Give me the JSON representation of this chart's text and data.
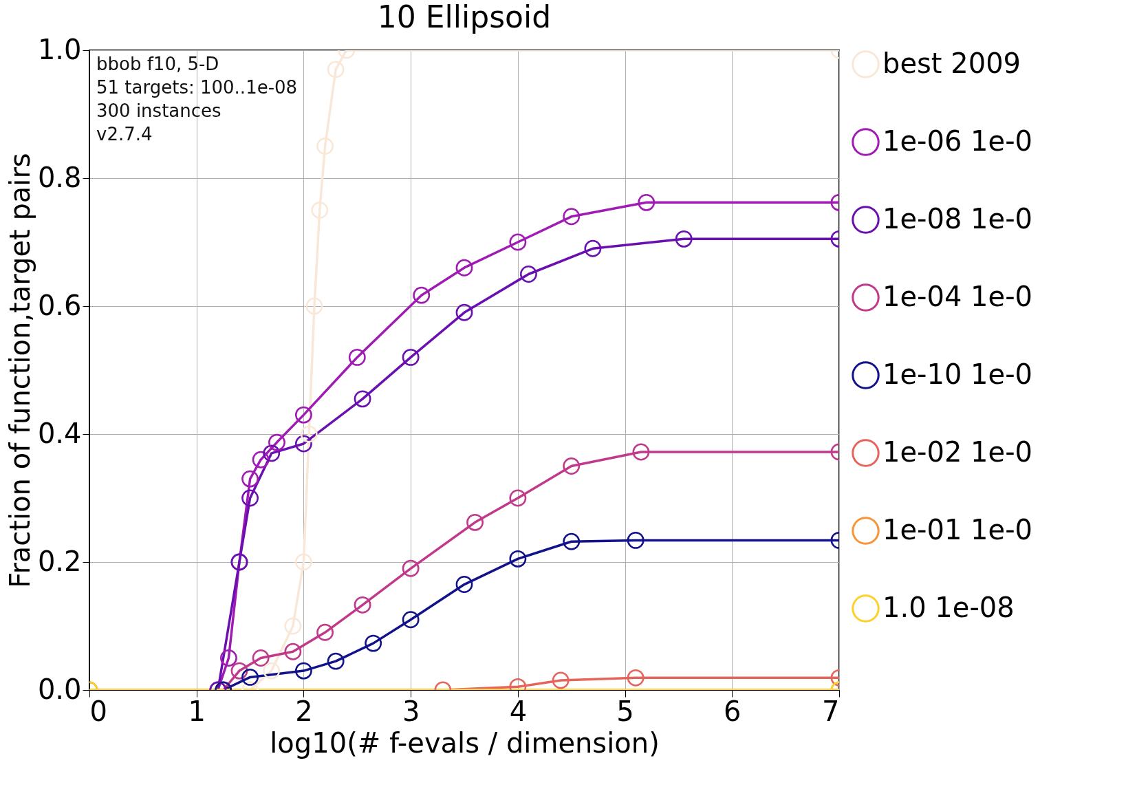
{
  "chart_data": {
    "type": "line",
    "title": "10 Ellipsoid",
    "xlabel": "log10(# f-evals / dimension)",
    "ylabel": "Fraction of function,target pairs",
    "annotations": [
      "bbob f10, 5-D",
      "51 targets: 100..1e-08",
      "300 instances",
      "v2.7.4"
    ],
    "xlim": [
      0,
      7
    ],
    "xticks": [
      0,
      1,
      2,
      3,
      4,
      5,
      6,
      7
    ],
    "ylim": [
      0,
      1
    ],
    "yticks": [
      {
        "value": 0,
        "label": "0.0"
      },
      {
        "value": 0.2,
        "label": "0.2"
      },
      {
        "value": 0.4,
        "label": "0.4"
      },
      {
        "value": 0.6,
        "label": "0.6"
      },
      {
        "value": 0.8,
        "label": "0.8"
      },
      {
        "value": 1,
        "label": "1.0"
      }
    ],
    "grid": true,
    "legend": "right",
    "marker": "circle",
    "line_style": "solid",
    "series": [
      {
        "name": "best 2009",
        "color": "#f9e8d8",
        "x": [
          1.5,
          1.7,
          1.9,
          2.0,
          2.05,
          2.1,
          2.15,
          2.2,
          2.3,
          2.4,
          7
        ],
        "values": [
          0,
          0.03,
          0.1,
          0.2,
          0.4,
          0.6,
          0.75,
          0.85,
          0.97,
          1.0,
          1.0
        ]
      },
      {
        "name": "1e-06 1e-0",
        "color": "#a01ab4",
        "x": [
          1.2,
          1.3,
          1.4,
          1.5,
          1.6,
          1.75,
          2.0,
          2.5,
          3.1,
          3.5,
          4,
          4.5,
          5.2,
          7
        ],
        "values": [
          0,
          0.05,
          0.2,
          0.33,
          0.36,
          0.387,
          0.43,
          0.52,
          0.617,
          0.66,
          0.7,
          0.74,
          0.762,
          0.762
        ]
      },
      {
        "name": "1e-08 1e-0",
        "color": "#6a10b0",
        "x": [
          1.2,
          1.4,
          1.5,
          1.7,
          2,
          2.55,
          3,
          3.5,
          4.1,
          4.7,
          5.55,
          7
        ],
        "values": [
          0,
          0.2,
          0.3,
          0.37,
          0.385,
          0.455,
          0.52,
          0.59,
          0.65,
          0.69,
          0.705,
          0.705
        ]
      },
      {
        "name": "1e-04 1e-0",
        "color": "#c0398a",
        "x": [
          1.25,
          1.4,
          1.6,
          1.9,
          2.2,
          2.55,
          3,
          3.6,
          4,
          4.5,
          5.15,
          7
        ],
        "values": [
          0,
          0.03,
          0.05,
          0.06,
          0.09,
          0.133,
          0.19,
          0.262,
          0.3,
          0.35,
          0.372,
          0.372
        ]
      },
      {
        "name": "1e-10 1e-0",
        "color": "#12128c",
        "x": [
          1.25,
          1.5,
          2,
          2.3,
          2.65,
          3,
          3.5,
          4,
          4.5,
          5.1,
          7
        ],
        "values": [
          0,
          0.02,
          0.03,
          0.045,
          0.073,
          0.11,
          0.165,
          0.205,
          0.232,
          0.234,
          0.234
        ]
      },
      {
        "name": "1e-02 1e-0",
        "color": "#e5645c",
        "x": [
          0,
          3.3,
          4,
          4.4,
          5.1,
          7
        ],
        "values": [
          0,
          0,
          0.005,
          0.015,
          0.019,
          0.019
        ]
      },
      {
        "name": "1e-01 1e-0",
        "color": "#f7953b",
        "x": [
          0,
          7
        ],
        "values": [
          0,
          0
        ]
      },
      {
        "name": "1.0 1e-08",
        "color": "#fdd12a",
        "x": [
          0,
          7
        ],
        "values": [
          0,
          0
        ]
      }
    ]
  }
}
